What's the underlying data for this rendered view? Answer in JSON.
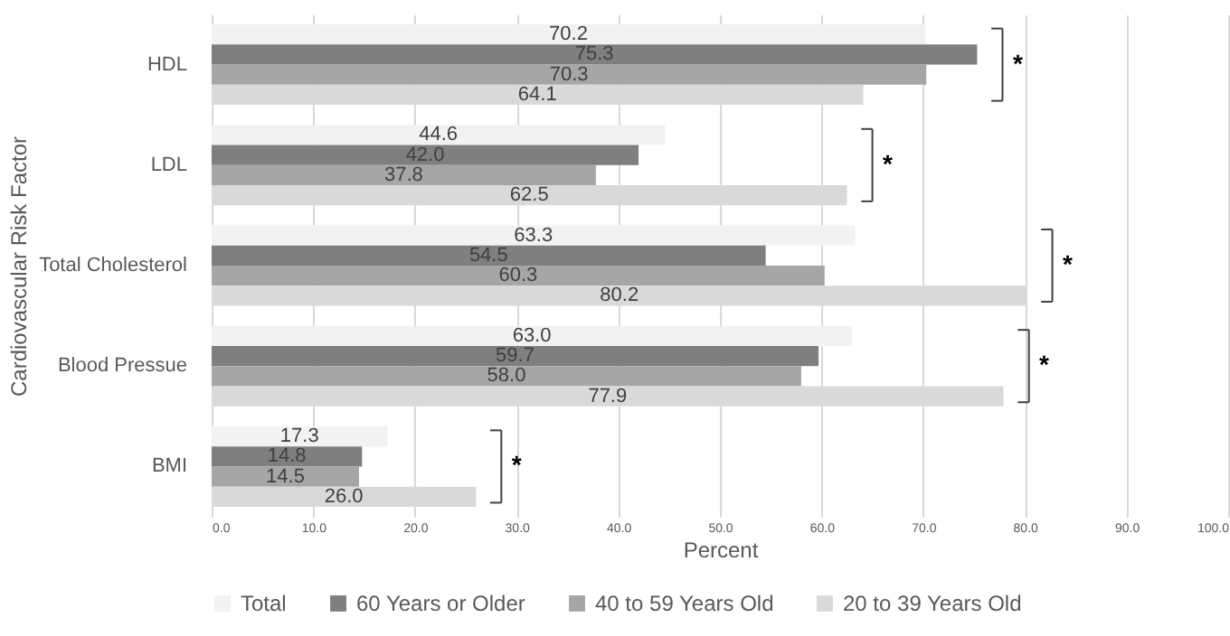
{
  "chart_data": {
    "type": "bar",
    "orientation": "horizontal",
    "xlabel": "Percent",
    "ylabel": "Cardiovascular Risk Factor",
    "categories": [
      "HDL",
      "LDL",
      "Total Cholesterol",
      "Blood Pressue",
      "BMI"
    ],
    "series": [
      {
        "name": "Total",
        "color": "#f2f2f2",
        "values": [
          70.2,
          44.6,
          63.3,
          63.0,
          17.3
        ],
        "value_labels": [
          "70.2",
          "44.6",
          "63.3",
          "63.0",
          "17.3"
        ]
      },
      {
        "name": "60 Years or Older",
        "color": "#7f7f7f",
        "values": [
          75.3,
          42.0,
          54.5,
          59.7,
          14.8
        ],
        "value_labels": [
          "75.3",
          "42.0",
          "54.5",
          "59.7",
          "14.8"
        ]
      },
      {
        "name": "40 to 59 Years Old",
        "color": "#a6a6a6",
        "values": [
          70.3,
          37.8,
          60.3,
          58.0,
          14.5
        ],
        "value_labels": [
          "70.3",
          "37.8",
          "60.3",
          "58.0",
          "14.5"
        ]
      },
      {
        "name": "20 to 39 Years Old",
        "color": "#d9d9d9",
        "values": [
          64.1,
          62.5,
          80.2,
          77.9,
          26.0
        ],
        "value_labels": [
          "64.1",
          "62.5",
          "80.2",
          "77.9",
          "26.0"
        ]
      }
    ],
    "xlim": [
      0,
      100
    ],
    "xticks": [
      {
        "value": 0,
        "label": "0.0"
      },
      {
        "value": 10,
        "label": "10.0"
      },
      {
        "value": 20,
        "label": "20.0"
      },
      {
        "value": 30,
        "label": "30.0"
      },
      {
        "value": 40,
        "label": "40.0"
      },
      {
        "value": 50,
        "label": "50.0"
      },
      {
        "value": 60,
        "label": "60.0"
      },
      {
        "value": 70,
        "label": "70.0"
      },
      {
        "value": 80,
        "label": "80.0"
      },
      {
        "value": 90,
        "label": "90.0"
      },
      {
        "value": 100,
        "label": "100.0"
      }
    ],
    "grid": "x",
    "legend": "bottom",
    "annotations": [
      "*",
      "*",
      "*",
      "*",
      "*"
    ]
  }
}
